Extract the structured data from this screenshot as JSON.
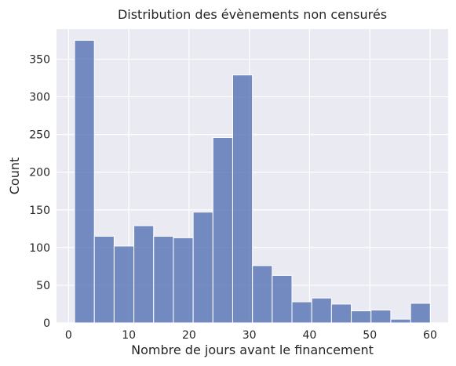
{
  "chart_data": {
    "type": "bar",
    "title": "Distribution des évènements non censurés",
    "xlabel": "Nombre de jours avant le financement",
    "ylabel": "Count",
    "xlim": [
      -2,
      63
    ],
    "ylim": [
      0,
      390
    ],
    "xticks": [
      0,
      10,
      20,
      30,
      40,
      50,
      60
    ],
    "yticks": [
      0,
      50,
      100,
      150,
      200,
      250,
      300,
      350
    ],
    "grid": true,
    "bar_color": "#5975b4",
    "background_color": "#eaeaf2",
    "bins": [
      {
        "start": 1.0,
        "end": 4.28,
        "count": 375
      },
      {
        "start": 4.28,
        "end": 7.56,
        "count": 115
      },
      {
        "start": 7.56,
        "end": 10.84,
        "count": 102
      },
      {
        "start": 10.84,
        "end": 14.12,
        "count": 129
      },
      {
        "start": 14.12,
        "end": 17.4,
        "count": 115
      },
      {
        "start": 17.4,
        "end": 20.68,
        "count": 113
      },
      {
        "start": 20.68,
        "end": 23.96,
        "count": 147
      },
      {
        "start": 23.96,
        "end": 27.24,
        "count": 246
      },
      {
        "start": 27.24,
        "end": 30.52,
        "count": 329
      },
      {
        "start": 30.52,
        "end": 33.8,
        "count": 76
      },
      {
        "start": 33.8,
        "end": 37.08,
        "count": 63
      },
      {
        "start": 37.08,
        "end": 40.36,
        "count": 28
      },
      {
        "start": 40.36,
        "end": 43.64,
        "count": 33
      },
      {
        "start": 43.64,
        "end": 46.92,
        "count": 25
      },
      {
        "start": 46.92,
        "end": 50.2,
        "count": 16
      },
      {
        "start": 50.2,
        "end": 53.48,
        "count": 17
      },
      {
        "start": 53.48,
        "end": 56.76,
        "count": 5
      },
      {
        "start": 56.76,
        "end": 60.04,
        "count": 26
      }
    ]
  }
}
